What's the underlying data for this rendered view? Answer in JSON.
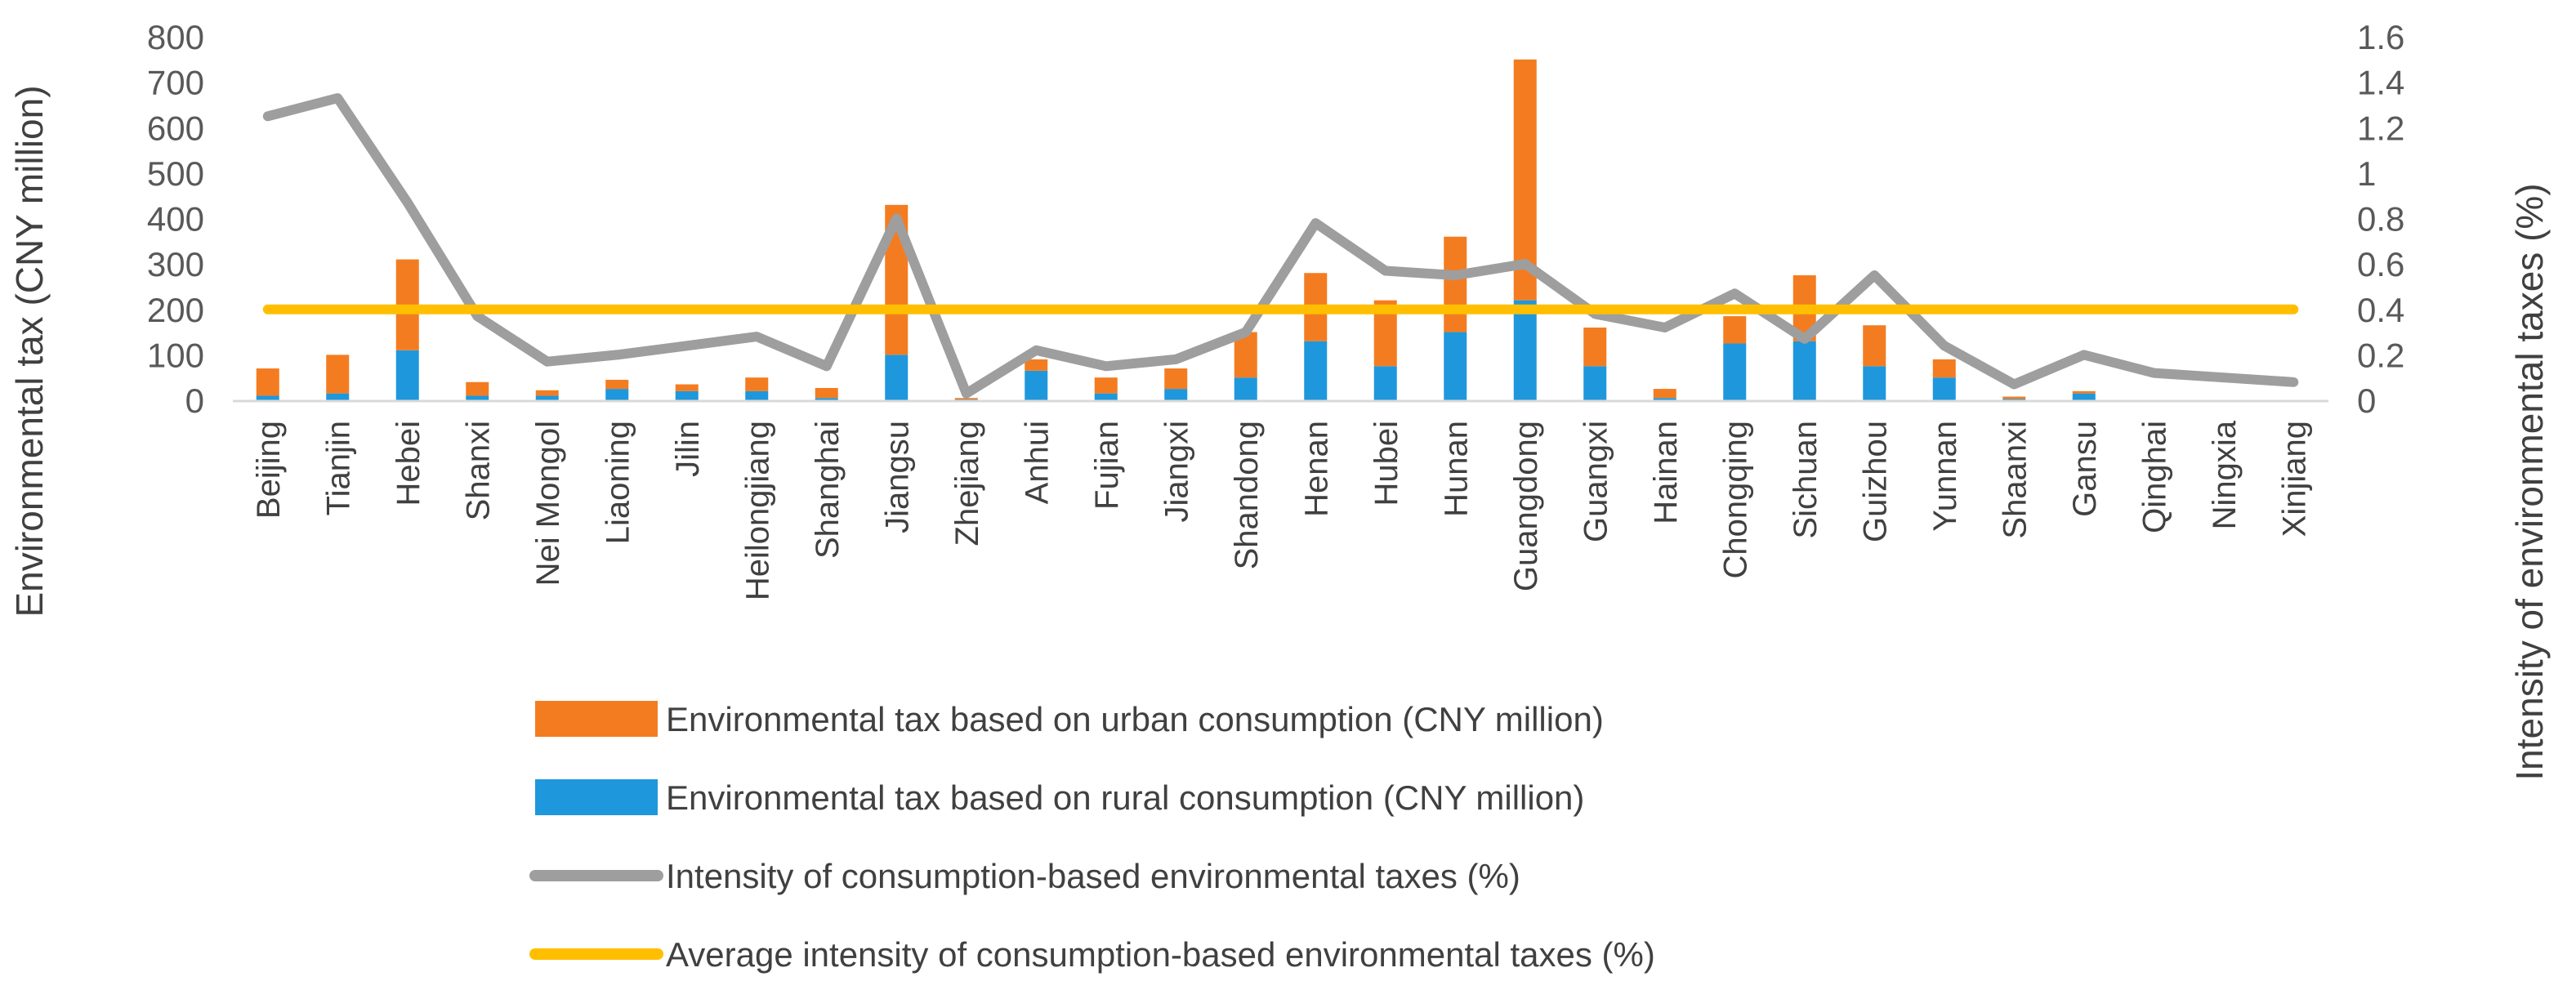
{
  "chart_data": {
    "type": "bar",
    "stacked": true,
    "categories": [
      "Beijing",
      "Tianjin",
      "Hebei",
      "Shanxi",
      "Nei Mongol",
      "Liaoning",
      "Jilin",
      "Heilongjiang",
      "Shanghai",
      "Jiangsu",
      "Zhejiang",
      "Anhui",
      "Fujian",
      "Jiangxi",
      "Shandong",
      "Henan",
      "Hubei",
      "Hunan",
      "Guangdong",
      "Guangxi",
      "Hainan",
      "Chongqing",
      "Sichuan",
      "Guizhou",
      "Yunnan",
      "Shaanxi",
      "Gansu",
      "Qinghai",
      "Ningxia",
      "Xinjiang"
    ],
    "series": [
      {
        "name": "Environmental tax based on rural consumption (CNY million)",
        "kind": "bar",
        "axis": "left",
        "color": "#1f97dc",
        "values": [
          10,
          15,
          110,
          10,
          10,
          25,
          20,
          20,
          5,
          100,
          2,
          65,
          15,
          25,
          50,
          130,
          75,
          150,
          220,
          75,
          5,
          125,
          130,
          75,
          50,
          3,
          15,
          0,
          0,
          0
        ]
      },
      {
        "name": "Environmental tax based on urban consumption (CNY million)",
        "kind": "bar",
        "axis": "left",
        "color": "#f47c20",
        "values": [
          60,
          85,
          200,
          30,
          12,
          20,
          15,
          30,
          22,
          330,
          3,
          25,
          35,
          45,
          100,
          150,
          145,
          210,
          530,
          85,
          20,
          60,
          145,
          90,
          40,
          5,
          5,
          0,
          0,
          0
        ]
      },
      {
        "name": "Intensity of consumption-based environmental taxes (%)",
        "kind": "line",
        "axis": "right",
        "color": "#9e9e9e",
        "values": [
          1.25,
          1.33,
          0.87,
          0.37,
          0.17,
          0.2,
          0.24,
          0.28,
          0.15,
          0.8,
          0.03,
          0.22,
          0.15,
          0.18,
          0.3,
          0.78,
          0.57,
          0.55,
          0.6,
          0.38,
          0.32,
          0.47,
          0.27,
          0.55,
          0.24,
          0.07,
          0.2,
          0.12,
          0.1,
          0.08
        ]
      },
      {
        "name": "Average intensity of consumption-based environmental taxes (%)",
        "kind": "line",
        "axis": "right",
        "color": "#ffbf00",
        "values": [
          0.4,
          0.4,
          0.4,
          0.4,
          0.4,
          0.4,
          0.4,
          0.4,
          0.4,
          0.4,
          0.4,
          0.4,
          0.4,
          0.4,
          0.4,
          0.4,
          0.4,
          0.4,
          0.4,
          0.4,
          0.4,
          0.4,
          0.4,
          0.4,
          0.4,
          0.4,
          0.4,
          0.4,
          0.4,
          0.4
        ]
      }
    ],
    "ylabel": "Environmental tax (CNY million)",
    "y2label": "Intensity of environmental taxes (%)",
    "ylim": [
      0,
      800
    ],
    "y2lim": [
      0,
      1.6
    ],
    "yticks": [
      "0",
      "100",
      "200",
      "300",
      "400",
      "500",
      "600",
      "700",
      "800"
    ],
    "y2ticks": [
      "0",
      "0.2",
      "0.4",
      "0.6",
      "0.8",
      "1",
      "1.2",
      "1.4",
      "1.6"
    ],
    "grid": false,
    "legend_position": "bottom",
    "legend_order": [
      1,
      0,
      2,
      3
    ]
  }
}
